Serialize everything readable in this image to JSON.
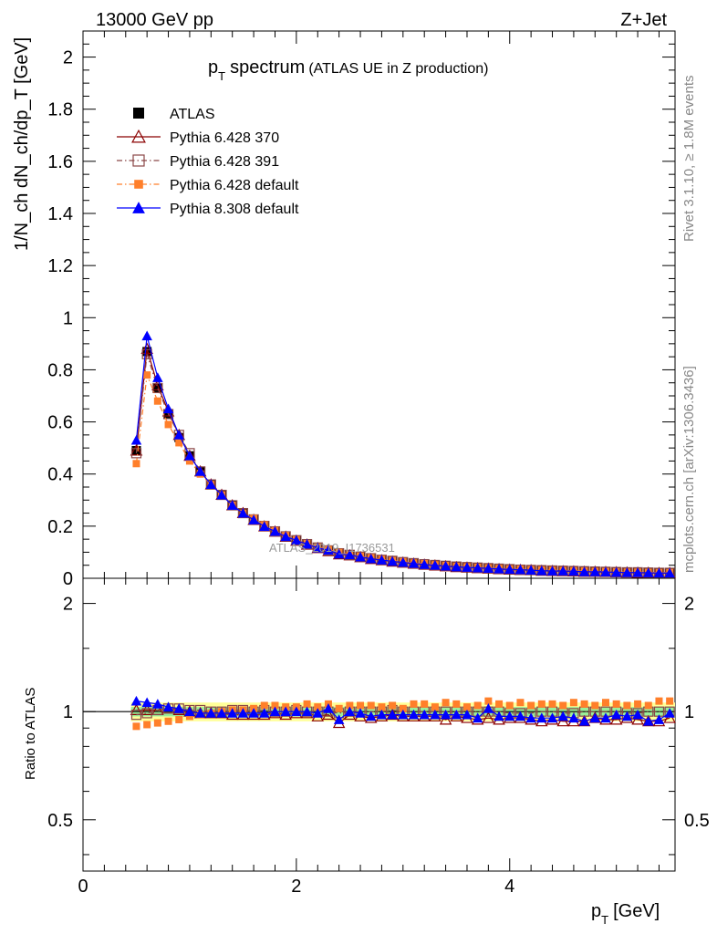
{
  "header": {
    "energy_label": "13000 GeV pp",
    "process_label": "Z+Jet"
  },
  "side_labels": {
    "rivet": "Rivet 3.1.10, ≥ 1.8M events",
    "mcplots": "mcplots.cern.ch [arXiv:1306.3436]"
  },
  "watermark": "ATLAS_2019_I1736531",
  "chart_data": [
    {
      "type": "line",
      "panel": "main",
      "title_main": "p",
      "title_sub": "T",
      "title_word": "spectrum",
      "title_note": "(ATLAS UE in Z production)",
      "ylabel": "1/N_ch dN_ch/dp_T [GeV]",
      "xlim": [
        0,
        5.55
      ],
      "ylim": [
        0,
        2.1
      ],
      "yticks": [
        0,
        0.2,
        0.4,
        0.6,
        0.8,
        1,
        1.2,
        1.4,
        1.6,
        1.8,
        2
      ],
      "ytick_labels": [
        "0",
        "0.2",
        "0.4",
        "0.6",
        "0.8",
        "1",
        "1.2",
        "1.4",
        "1.6",
        "1.8",
        "2"
      ],
      "legend_position": "top-left",
      "x": [
        0.5,
        0.6,
        0.7,
        0.8,
        0.9,
        1.0,
        1.1,
        1.2,
        1.3,
        1.4,
        1.5,
        1.6,
        1.7,
        1.8,
        1.9,
        2.0,
        2.1,
        2.2,
        2.3,
        2.4,
        2.5,
        2.6,
        2.7,
        2.8,
        2.9,
        3.0,
        3.1,
        3.2,
        3.3,
        3.4,
        3.5,
        3.6,
        3.7,
        3.8,
        3.9,
        4.0,
        4.1,
        4.2,
        4.3,
        4.4,
        4.5,
        4.6,
        4.7,
        4.8,
        4.9,
        5.0,
        5.1,
        5.2,
        5.3,
        5.4,
        5.5
      ],
      "series": [
        {
          "name": "ATLAS",
          "color": "#000000",
          "marker": "square-filled",
          "line": "none",
          "values": [
            0.49,
            0.87,
            0.73,
            0.63,
            0.54,
            0.47,
            0.41,
            0.36,
            0.32,
            0.28,
            0.25,
            0.225,
            0.2,
            0.18,
            0.16,
            0.145,
            0.13,
            0.118,
            0.107,
            0.097,
            0.09,
            0.083,
            0.077,
            0.071,
            0.066,
            0.062,
            0.058,
            0.054,
            0.051,
            0.048,
            0.045,
            0.043,
            0.041,
            0.039,
            0.037,
            0.035,
            0.034,
            0.032,
            0.031,
            0.03,
            0.029,
            0.028,
            0.027,
            0.026,
            0.025,
            0.024,
            0.023,
            0.023,
            0.022,
            0.021,
            0.021
          ]
        },
        {
          "name": "Pythia 6.428 370",
          "color": "#8b0000",
          "marker": "triangle-open",
          "line": "solid",
          "values": [
            0.49,
            0.88,
            0.74,
            0.64,
            0.55,
            0.47,
            0.41,
            0.36,
            0.32,
            0.28,
            0.25,
            0.224,
            0.199,
            0.179,
            0.159,
            0.144,
            0.129,
            0.116,
            0.104,
            0.092,
            0.088,
            0.081,
            0.074,
            0.069,
            0.064,
            0.06,
            0.056,
            0.052,
            0.049,
            0.046,
            0.043,
            0.041,
            0.039,
            0.037,
            0.035,
            0.033,
            0.032,
            0.031,
            0.029,
            0.028,
            0.027,
            0.026,
            0.025,
            0.025,
            0.024,
            0.023,
            0.022,
            0.021,
            0.021,
            0.02,
            0.02
          ]
        },
        {
          "name": "Pythia 6.428 391",
          "color": "#8b4848",
          "marker": "square-open",
          "line": "dashdot",
          "values": [
            0.48,
            0.86,
            0.73,
            0.63,
            0.55,
            0.48,
            0.41,
            0.36,
            0.32,
            0.28,
            0.25,
            0.226,
            0.201,
            0.18,
            0.161,
            0.146,
            0.131,
            0.118,
            0.107,
            0.096,
            0.09,
            0.083,
            0.077,
            0.071,
            0.067,
            0.062,
            0.058,
            0.054,
            0.051,
            0.048,
            0.045,
            0.043,
            0.041,
            0.039,
            0.037,
            0.035,
            0.033,
            0.032,
            0.031,
            0.03,
            0.029,
            0.028,
            0.027,
            0.026,
            0.025,
            0.024,
            0.023,
            0.023,
            0.022,
            0.021,
            0.021
          ]
        },
        {
          "name": "Pythia 6.428 default",
          "color": "#ff7f2a",
          "marker": "square-filled-small",
          "line": "dashdot",
          "values": [
            0.44,
            0.78,
            0.68,
            0.59,
            0.52,
            0.45,
            0.4,
            0.36,
            0.32,
            0.28,
            0.25,
            0.23,
            0.205,
            0.183,
            0.164,
            0.148,
            0.133,
            0.12,
            0.11,
            0.099,
            0.092,
            0.085,
            0.079,
            0.073,
            0.068,
            0.064,
            0.059,
            0.056,
            0.052,
            0.049,
            0.046,
            0.044,
            0.042,
            0.04,
            0.038,
            0.036,
            0.035,
            0.033,
            0.032,
            0.031,
            0.03,
            0.029,
            0.028,
            0.027,
            0.026,
            0.025,
            0.024,
            0.024,
            0.023,
            0.022,
            0.022
          ]
        },
        {
          "name": "Pythia 8.308 default",
          "color": "#0000ff",
          "marker": "triangle-filled",
          "line": "solid",
          "values": [
            0.53,
            0.93,
            0.77,
            0.65,
            0.55,
            0.47,
            0.41,
            0.36,
            0.32,
            0.28,
            0.25,
            0.224,
            0.199,
            0.18,
            0.16,
            0.146,
            0.131,
            0.117,
            0.108,
            0.093,
            0.09,
            0.082,
            0.075,
            0.07,
            0.065,
            0.061,
            0.057,
            0.053,
            0.05,
            0.047,
            0.044,
            0.042,
            0.04,
            0.038,
            0.036,
            0.034,
            0.033,
            0.031,
            0.029,
            0.028,
            0.028,
            0.027,
            0.025,
            0.025,
            0.024,
            0.023,
            0.022,
            0.022,
            0.021,
            0.02,
            0.02
          ]
        }
      ]
    },
    {
      "type": "line",
      "panel": "ratio",
      "ylabel": "Ratio to ATLAS",
      "xlabel_main": "p",
      "xlabel_sub": "T",
      "xlabel_unit": "[GeV]",
      "xlim": [
        0,
        5.55
      ],
      "xticks": [
        0,
        2,
        4
      ],
      "xtick_labels": [
        "0",
        "2",
        "4"
      ],
      "ylim": [
        0.36,
        2.35
      ],
      "yticks": [
        0.5,
        1,
        2
      ],
      "ytick_labels": [
        "0.5",
        "1",
        "2"
      ],
      "log_y": true,
      "reference": 1,
      "band_inner": 0.03,
      "band_outer": 0.06,
      "x": [
        0.5,
        0.6,
        0.7,
        0.8,
        0.9,
        1.0,
        1.1,
        1.2,
        1.3,
        1.4,
        1.5,
        1.6,
        1.7,
        1.8,
        1.9,
        2.0,
        2.1,
        2.2,
        2.3,
        2.4,
        2.5,
        2.6,
        2.7,
        2.8,
        2.9,
        3.0,
        3.1,
        3.2,
        3.3,
        3.4,
        3.5,
        3.6,
        3.7,
        3.8,
        3.9,
        4.0,
        4.1,
        4.2,
        4.3,
        4.4,
        4.5,
        4.6,
        4.7,
        4.8,
        4.9,
        5.0,
        5.1,
        5.2,
        5.3,
        5.4,
        5.5
      ],
      "series": [
        {
          "name": "Pythia 6.428 370",
          "color": "#8b0000",
          "marker": "triangle-open",
          "line": "solid",
          "values": [
            1.01,
            1.01,
            1.01,
            1.02,
            1.01,
            1.0,
            0.99,
            0.99,
            0.99,
            0.98,
            0.98,
            0.98,
            0.98,
            0.99,
            0.98,
            0.99,
            0.99,
            0.97,
            0.98,
            0.93,
            0.98,
            0.97,
            0.96,
            0.97,
            0.98,
            0.97,
            0.97,
            0.97,
            0.97,
            0.95,
            0.97,
            0.96,
            0.95,
            0.96,
            0.95,
            0.96,
            0.96,
            0.95,
            0.94,
            0.95,
            0.94,
            0.94,
            0.94,
            0.96,
            0.95,
            0.95,
            0.96,
            0.95,
            0.94,
            0.94,
            0.96
          ]
        },
        {
          "name": "Pythia 6.428 391",
          "color": "#8b4848",
          "marker": "square-open",
          "line": "dashdot",
          "values": [
            0.98,
            0.99,
            1.01,
            1.02,
            1.02,
            1.01,
            1.01,
            1.0,
            1.0,
            1.01,
            1.01,
            1.0,
            1.01,
            1.0,
            1.0,
            1.01,
            1.0,
            1.0,
            1.0,
            0.99,
            1.0,
            1.0,
            1.0,
            1.0,
            1.01,
            1.0,
            1.0,
            1.0,
            1.0,
            1.0,
            1.0,
            1.0,
            1.0,
            1.0,
            1.0,
            0.99,
            0.99,
            0.99,
            1.0,
            1.0,
            0.99,
            0.99,
            1.0,
            1.0,
            1.0,
            1.0,
            0.99,
            0.99,
            1.0,
            1.0,
            1.0
          ]
        },
        {
          "name": "Pythia 6.428 default",
          "color": "#ff7f2a",
          "marker": "square-filled-small",
          "line": "none",
          "values": [
            0.91,
            0.92,
            0.93,
            0.94,
            0.95,
            0.97,
            0.98,
            0.99,
            1.0,
            1.01,
            1.01,
            1.02,
            1.04,
            1.04,
            1.03,
            1.03,
            1.05,
            1.03,
            1.05,
            1.02,
            1.04,
            1.04,
            1.04,
            1.03,
            1.04,
            1.02,
            1.05,
            1.05,
            1.03,
            1.06,
            1.05,
            1.03,
            1.04,
            1.07,
            1.05,
            1.04,
            1.06,
            1.04,
            1.05,
            1.05,
            1.04,
            1.06,
            1.05,
            1.04,
            1.06,
            1.05,
            1.04,
            1.05,
            1.04,
            1.07,
            1.07
          ]
        },
        {
          "name": "Pythia 8.308 default",
          "color": "#0000ff",
          "marker": "triangle-filled",
          "line": "solid",
          "values": [
            1.07,
            1.06,
            1.05,
            1.03,
            1.02,
            1.0,
            0.99,
            0.99,
            0.99,
            0.99,
            0.99,
            0.99,
            0.99,
            1.0,
            1.0,
            1.0,
            1.0,
            0.99,
            1.02,
            0.95,
            1.0,
            0.99,
            0.97,
            0.98,
            0.98,
            0.98,
            0.98,
            0.98,
            0.98,
            0.98,
            0.98,
            0.98,
            0.96,
            1.02,
            0.97,
            0.97,
            0.97,
            0.96,
            0.96,
            0.96,
            0.97,
            0.96,
            0.94,
            0.96,
            0.96,
            0.98,
            0.97,
            0.98,
            0.94,
            0.95,
            0.99
          ]
        }
      ]
    }
  ]
}
